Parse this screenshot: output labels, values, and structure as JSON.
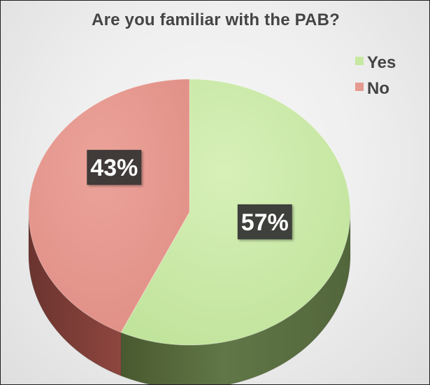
{
  "chart_data": {
    "type": "pie",
    "title": "Are you familiar with the PAB?",
    "slices": [
      {
        "label": "Yes",
        "value": 57,
        "data_label": "57%",
        "color": "#c6e8a1",
        "side_color": "#5d7345"
      },
      {
        "label": "No",
        "value": 43,
        "data_label": "43%",
        "color": "#e59a8f",
        "side_color": "#7b3d36"
      }
    ],
    "legend": {
      "position": "top-right",
      "items": [
        "Yes",
        "No"
      ]
    },
    "style": {
      "three_d": true,
      "data_label_background": "#333333",
      "data_label_color": "#ffffff",
      "legend_text_color": "#444444",
      "title_color": "#444444"
    }
  }
}
